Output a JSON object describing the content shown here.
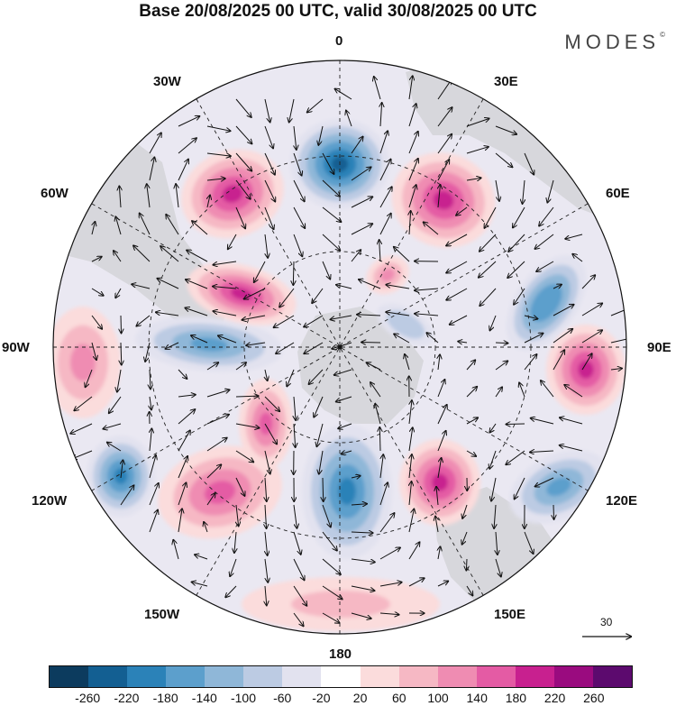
{
  "title": "Base 20/08/2025 00 UTC, valid 30/08/2025 00 UTC",
  "brand": "MODES",
  "brand_mark": "©",
  "longitude_labels": {
    "top": "0",
    "top_right": "30E",
    "top_left": "30W",
    "right_upper": "60E",
    "left_upper": "60W",
    "right": "90E",
    "left": "90W",
    "right_lower": "120E",
    "left_lower": "120W",
    "bottom_right": "150E",
    "bottom_left": "150W",
    "bottom": "180"
  },
  "vector_scale_label": "30",
  "colorbar": {
    "colors": [
      "#0c3b5e",
      "#135f92",
      "#2b82b8",
      "#5c9fcc",
      "#8fb7d8",
      "#bccbe3",
      "#e2e2ef",
      "#ffffff",
      "#fbdcdc",
      "#f6b8c4",
      "#ef8cb2",
      "#e45ba4",
      "#c8208f",
      "#9a0b7f",
      "#5c0a6e"
    ],
    "tick_labels": [
      "-260",
      "-220",
      "-180",
      "-140",
      "-100",
      "-60",
      "-20",
      "20",
      "60",
      "100",
      "140",
      "180",
      "220",
      "260"
    ]
  },
  "anomaly_centers": [
    {
      "name": "neg-near-0",
      "value": -240
    },
    {
      "name": "pos-30W-60W",
      "value": 200
    },
    {
      "name": "pos-30E-60E",
      "value": 200
    },
    {
      "name": "pos-90W",
      "value": 120
    },
    {
      "name": "neg-90W-inner",
      "value": -160
    },
    {
      "name": "pos-60W-inner",
      "value": 180
    },
    {
      "name": "neg-60E-90E",
      "value": -180
    },
    {
      "name": "pos-90E",
      "value": 200
    },
    {
      "name": "neg-120W",
      "value": -200
    },
    {
      "name": "pos-120W-150W",
      "value": 160
    },
    {
      "name": "pos-near-150W-inner",
      "value": 140
    },
    {
      "name": "neg-near-180",
      "value": -200
    },
    {
      "name": "pos-150E-inner",
      "value": 200
    },
    {
      "name": "neg-120E",
      "value": -160
    },
    {
      "name": "pos-near-180-outer",
      "value": 60
    },
    {
      "name": "neg-inner-30E",
      "value": -100
    },
    {
      "name": "pos-inner-30E",
      "value": 100
    }
  ]
}
